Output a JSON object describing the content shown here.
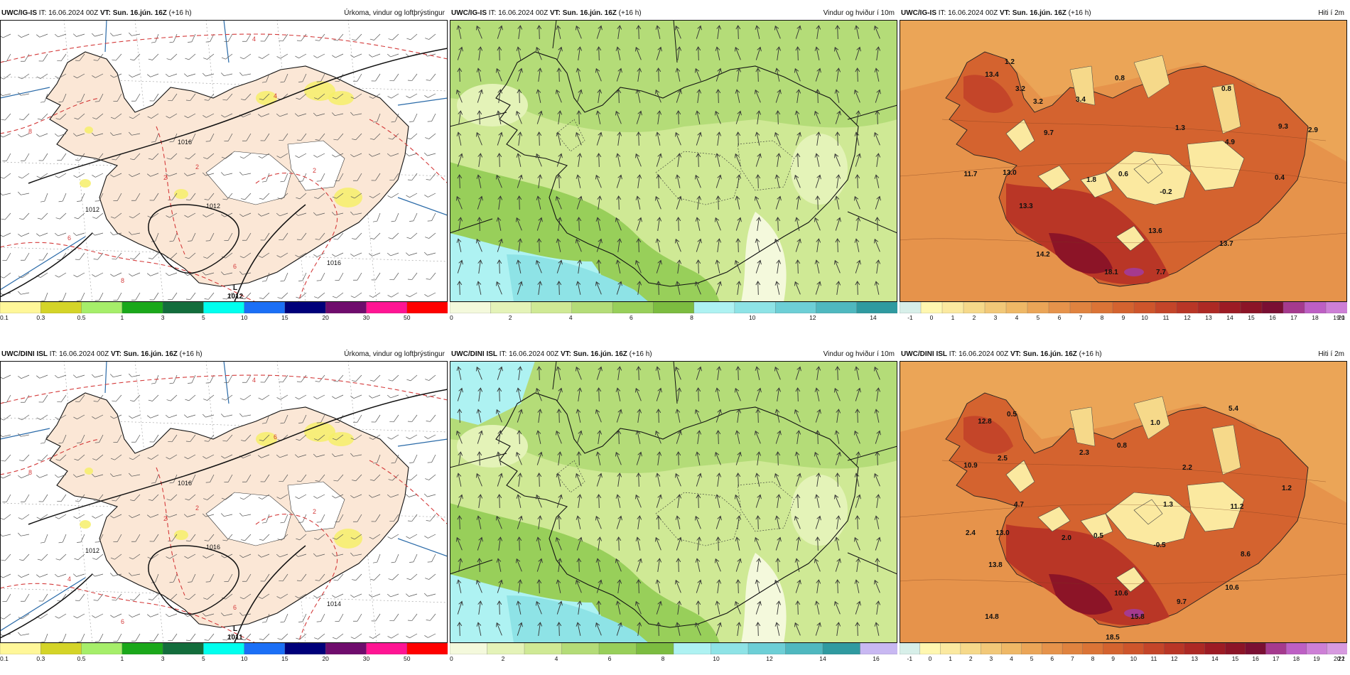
{
  "panels": [
    {
      "id": "r1c1",
      "model": "UWC/IG-IS",
      "it": "IT: 16.06.2024 00Z",
      "vt": "VT: Sun. 16.jún. 16Z",
      "lead": "(+16 h)",
      "product": "Úrkoma, vindur og loftþrýstingur",
      "variable": "precip",
      "isobars": [
        "1016",
        "1012",
        "1016",
        "1012"
      ],
      "low_label": "L",
      "low_value": "1012",
      "temp_labels": [
        "4",
        "8",
        "4",
        "2",
        "2",
        "2",
        "6",
        "8",
        "6"
      ],
      "legend_colors": [
        "#fff799",
        "#d4d428",
        "#a6ee6a",
        "#1aa81a",
        "#136d3c",
        "#00ffee",
        "#1b6ff6",
        "#00007a",
        "#6f0c6d",
        "#ff1493",
        "#ff0000"
      ],
      "legend_ticks": [
        "0.1",
        "0.3",
        "0.5",
        "1",
        "3",
        "5",
        "10",
        "15",
        "20",
        "30",
        "50"
      ]
    },
    {
      "id": "r1c2",
      "model": "UWC/IG-IS",
      "it": "IT: 16.06.2024 00Z",
      "vt": "VT: Sun. 16.jún. 16Z",
      "lead": "(+16 h)",
      "product": "Vindur og hviður í 10m",
      "variable": "wind",
      "legend_colors": [
        "#f4f9dc",
        "#e4f3b8",
        "#cfe995",
        "#b4dc78",
        "#98cf5a",
        "#7cbc40",
        "#aef2f2",
        "#8ee3e6",
        "#6dcfd6",
        "#4fb8bf",
        "#2f9aa0"
      ],
      "legend_ticks": [
        "0",
        "2",
        "4",
        "6",
        "8",
        "10",
        "12",
        "14"
      ]
    },
    {
      "id": "r1c3",
      "model": "UWC/IG-IS",
      "it": "IT: 16.06.2024 00Z",
      "vt": "VT: Sun. 16.jún. 16Z",
      "lead": "(+16 h)",
      "product": "Hiti í 2m",
      "variable": "temperature",
      "values": [
        "1.2",
        "3.2",
        "13.4",
        "3.2",
        "3.4",
        "0.8",
        "0.8",
        "9.7",
        "1.3",
        "4.9",
        "9.3",
        "2.9",
        "11.7",
        "13.0",
        "1.8",
        "0.6",
        "-0.2",
        "0.4",
        "13.3",
        "13.6",
        "14.2",
        "13.7",
        "18.1",
        "7.7"
      ],
      "legend_colors": [
        "#d7efe9",
        "#fff7b0",
        "#fbe9a0",
        "#f6d98a",
        "#f2c878",
        "#efb866",
        "#eba557",
        "#e6934b",
        "#e0833f",
        "#db7436",
        "#d4632f",
        "#ce552b",
        "#c44529",
        "#b93626",
        "#ad2924",
        "#9d1b24",
        "#8c1427",
        "#7a0f33",
        "#a53a8e",
        "#bd5fc4",
        "#cd7fd6"
      ],
      "legend_ticks": [
        "-1",
        "0",
        "1",
        "2",
        "3",
        "4",
        "5",
        "6",
        "7",
        "8",
        "9",
        "10",
        "11",
        "12",
        "13",
        "14",
        "15",
        "16",
        "17",
        "18",
        "19",
        "20",
        "21"
      ]
    },
    {
      "id": "r2c1",
      "model": "UWC/DINI ISL",
      "it": "IT: 16.06.2024 00Z",
      "vt": "VT: Sun. 16.jún. 16Z",
      "lead": "(+16 h)",
      "product": "Úrkoma, vindur og loftþrýstingur",
      "variable": "precip",
      "isobars": [
        "1016",
        "1016",
        "1014",
        "1012"
      ],
      "low_label": "L",
      "low_value": "1011",
      "temp_labels": [
        "4",
        "8",
        "6",
        "2",
        "2",
        "2",
        "4",
        "6",
        "6"
      ],
      "legend_colors": [
        "#fff799",
        "#d4d428",
        "#a6ee6a",
        "#1aa81a",
        "#136d3c",
        "#00ffee",
        "#1b6ff6",
        "#00007a",
        "#6f0c6d",
        "#ff1493",
        "#ff0000"
      ],
      "legend_ticks": [
        "0.1",
        "0.3",
        "0.5",
        "1",
        "3",
        "5",
        "10",
        "15",
        "20",
        "30",
        "50"
      ]
    },
    {
      "id": "r2c2",
      "model": "UWC/DINI ISL",
      "it": "IT: 16.06.2024 00Z",
      "vt": "VT: Sun. 16.jún. 16Z",
      "lead": "(+16 h)",
      "product": "Vindur og hviður í 10m",
      "variable": "wind",
      "legend_colors": [
        "#f4f9dc",
        "#e4f3b8",
        "#cfe995",
        "#b4dc78",
        "#98cf5a",
        "#7cbc40",
        "#aef2f2",
        "#8ee3e6",
        "#6dcfd6",
        "#4fb8bf",
        "#2f9aa0",
        "#c8b8f2"
      ],
      "legend_ticks": [
        "0",
        "2",
        "4",
        "6",
        "8",
        "10",
        "12",
        "14",
        "16"
      ]
    },
    {
      "id": "r2c3",
      "model": "UWC/DINI ISL",
      "it": "IT: 16.06.2024 00Z",
      "vt": "VT: Sun. 16.jún. 16Z",
      "lead": "(+16 h)",
      "product": "Hiti í 2m",
      "variable": "temperature",
      "values": [
        "12.8",
        "0.5",
        "5.4",
        "1.0",
        "10.9",
        "2.5",
        "2.3",
        "0.8",
        "2.2",
        "1.2",
        "4.7",
        "1.3",
        "11.2",
        "2.4",
        "13.0",
        "2.0",
        "0.5",
        "-0.5",
        "8.6",
        "13.8",
        "10.6",
        "10.6",
        "14.8",
        "15.8",
        "9.7",
        "18.5"
      ],
      "legend_colors": [
        "#d7efe9",
        "#fff7b0",
        "#fbe9a0",
        "#f6d98a",
        "#f2c878",
        "#efb866",
        "#eba557",
        "#e6934b",
        "#e0833f",
        "#db7436",
        "#d4632f",
        "#ce552b",
        "#c44529",
        "#b93626",
        "#ad2924",
        "#9d1b24",
        "#8c1427",
        "#7a0f33",
        "#a53a8e",
        "#bd5fc4",
        "#cd7fd6",
        "#d79ae0"
      ],
      "legend_ticks": [
        "-1",
        "0",
        "1",
        "2",
        "3",
        "4",
        "5",
        "6",
        "7",
        "8",
        "9",
        "10",
        "11",
        "12",
        "13",
        "14",
        "15",
        "16",
        "17",
        "18",
        "19",
        "20",
        "21",
        "22"
      ]
    }
  ]
}
